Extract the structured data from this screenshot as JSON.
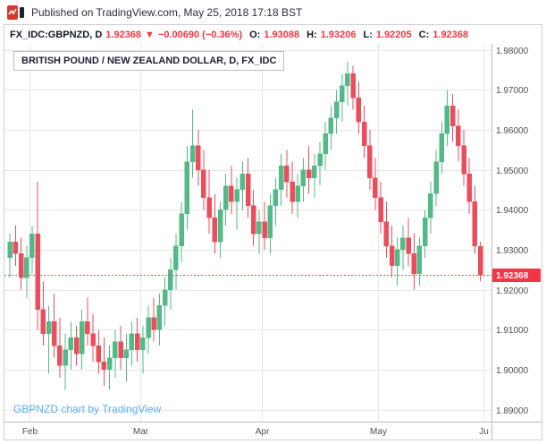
{
  "header": {
    "published_text": "Published on TradingView.com, May 25, 2018 17:18 BST"
  },
  "symbol_bar": {
    "symbol": "FX_IDC:GBPNZD, D",
    "last": "1.92368",
    "direction": "▼",
    "change": "−0.00690 (−0.36%)",
    "o_label": "O:",
    "o": "1.93088",
    "h_label": "H:",
    "h": "1.93206",
    "l_label": "L:",
    "l": "1.92205",
    "c_label": "C:",
    "c": "1.92368"
  },
  "chart_title": "BRITISH POUND / NEW ZEALAND DOLLAR, D, FX_IDC",
  "watermark": "GBPNZD chart by TradingView",
  "colors": {
    "up": "#53b987",
    "down": "#eb4d5c",
    "value_red": "#f23645",
    "tag_bg": "#f23645",
    "tag_text": "#ffffff",
    "grid": "#e7e7ea",
    "axis_border": "#b8bbc2",
    "axis_text": "#4f4f4f",
    "watermark": "#59b0e8"
  },
  "chart_data": {
    "type": "candlestick",
    "title": "BRITISH POUND / NEW ZEALAND DOLLAR, D, FX_IDC",
    "xlabel": "",
    "ylabel": "",
    "ylim": [
      1.887,
      1.9815
    ],
    "y_ticks": [
      "1.98000",
      "1.97000",
      "1.96000",
      "1.95000",
      "1.94000",
      "1.93000",
      "1.92000",
      "1.91000",
      "1.90000",
      "1.89000"
    ],
    "month_ticks": [
      {
        "label": "Feb",
        "index": 4
      },
      {
        "label": "Mar",
        "index": 24
      },
      {
        "label": "Apr",
        "index": 46
      },
      {
        "label": "May",
        "index": 67
      },
      {
        "label": "Ju",
        "index": 86
      }
    ],
    "last_price": 1.92368,
    "last_price_label": "1.92368",
    "ohlc": [
      [
        1.928,
        1.934,
        1.923,
        1.932
      ],
      [
        1.932,
        1.936,
        1.926,
        1.929
      ],
      [
        1.929,
        1.933,
        1.92,
        1.923
      ],
      [
        1.923,
        1.931,
        1.918,
        1.928
      ],
      [
        1.928,
        1.936,
        1.924,
        1.934
      ],
      [
        1.934,
        1.947,
        1.91,
        1.915
      ],
      [
        1.915,
        1.922,
        1.906,
        1.909
      ],
      [
        1.909,
        1.916,
        1.899,
        1.912
      ],
      [
        1.912,
        1.919,
        1.903,
        1.906
      ],
      [
        1.906,
        1.913,
        1.898,
        1.901
      ],
      [
        1.901,
        1.909,
        1.895,
        1.905
      ],
      [
        1.905,
        1.912,
        1.9,
        1.908
      ],
      [
        1.908,
        1.911,
        1.901,
        1.904
      ],
      [
        1.904,
        1.915,
        1.9,
        1.912
      ],
      [
        1.912,
        1.918,
        1.906,
        1.909
      ],
      [
        1.909,
        1.914,
        1.902,
        1.906
      ],
      [
        1.906,
        1.91,
        1.899,
        1.902
      ],
      [
        1.902,
        1.908,
        1.896,
        1.9
      ],
      [
        1.9,
        1.906,
        1.895,
        1.903
      ],
      [
        1.903,
        1.91,
        1.898,
        1.907
      ],
      [
        1.907,
        1.911,
        1.9,
        1.903
      ],
      [
        1.903,
        1.909,
        1.897,
        1.905
      ],
      [
        1.905,
        1.912,
        1.901,
        1.909
      ],
      [
        1.909,
        1.913,
        1.902,
        1.905
      ],
      [
        1.905,
        1.911,
        1.899,
        1.908
      ],
      [
        1.908,
        1.916,
        1.904,
        1.913
      ],
      [
        1.913,
        1.918,
        1.907,
        1.91
      ],
      [
        1.91,
        1.919,
        1.906,
        1.916
      ],
      [
        1.916,
        1.923,
        1.911,
        1.92
      ],
      [
        1.92,
        1.928,
        1.915,
        1.925
      ],
      [
        1.925,
        1.934,
        1.92,
        1.931
      ],
      [
        1.931,
        1.942,
        1.927,
        1.939
      ],
      [
        1.939,
        1.956,
        1.935,
        1.952
      ],
      [
        1.952,
        1.965,
        1.948,
        1.956
      ],
      [
        1.956,
        1.96,
        1.946,
        1.95
      ],
      [
        1.95,
        1.955,
        1.94,
        1.943
      ],
      [
        1.943,
        1.95,
        1.934,
        1.938
      ],
      [
        1.938,
        1.944,
        1.929,
        1.932
      ],
      [
        1.932,
        1.942,
        1.928,
        1.94
      ],
      [
        1.94,
        1.949,
        1.936,
        1.946
      ],
      [
        1.946,
        1.951,
        1.939,
        1.942
      ],
      [
        1.942,
        1.948,
        1.935,
        1.945
      ],
      [
        1.945,
        1.952,
        1.94,
        1.949
      ],
      [
        1.949,
        1.953,
        1.938,
        1.941
      ],
      [
        1.941,
        1.945,
        1.931,
        1.934
      ],
      [
        1.934,
        1.94,
        1.929,
        1.937
      ],
      [
        1.937,
        1.942,
        1.93,
        1.933
      ],
      [
        1.933,
        1.944,
        1.929,
        1.941
      ],
      [
        1.941,
        1.948,
        1.936,
        1.945
      ],
      [
        1.945,
        1.954,
        1.941,
        1.951
      ],
      [
        1.951,
        1.955,
        1.943,
        1.947
      ],
      [
        1.947,
        1.952,
        1.939,
        1.942
      ],
      [
        1.942,
        1.949,
        1.938,
        1.946
      ],
      [
        1.946,
        1.953,
        1.942,
        1.95
      ],
      [
        1.95,
        1.956,
        1.944,
        1.948
      ],
      [
        1.948,
        1.954,
        1.943,
        1.951
      ],
      [
        1.951,
        1.957,
        1.946,
        1.954
      ],
      [
        1.954,
        1.962,
        1.95,
        1.959
      ],
      [
        1.959,
        1.966,
        1.955,
        1.963
      ],
      [
        1.963,
        1.97,
        1.959,
        1.967
      ],
      [
        1.967,
        1.974,
        1.962,
        1.971
      ],
      [
        1.971,
        1.977,
        1.966,
        1.974
      ],
      [
        1.974,
        1.976,
        1.965,
        1.968
      ],
      [
        1.968,
        1.972,
        1.959,
        1.962
      ],
      [
        1.962,
        1.966,
        1.953,
        1.956
      ],
      [
        1.956,
        1.96,
        1.945,
        1.948
      ],
      [
        1.948,
        1.953,
        1.94,
        1.943
      ],
      [
        1.943,
        1.947,
        1.934,
        1.937
      ],
      [
        1.937,
        1.942,
        1.928,
        1.931
      ],
      [
        1.931,
        1.936,
        1.923,
        1.926
      ],
      [
        1.926,
        1.933,
        1.921,
        1.93
      ],
      [
        1.93,
        1.936,
        1.925,
        1.933
      ],
      [
        1.933,
        1.938,
        1.926,
        1.929
      ],
      [
        1.929,
        1.934,
        1.92,
        1.924
      ],
      [
        1.924,
        1.933,
        1.921,
        1.931
      ],
      [
        1.931,
        1.94,
        1.928,
        1.938
      ],
      [
        1.938,
        1.947,
        1.934,
        1.944
      ],
      [
        1.944,
        1.955,
        1.941,
        1.952
      ],
      [
        1.952,
        1.962,
        1.949,
        1.959
      ],
      [
        1.959,
        1.97,
        1.956,
        1.966
      ],
      [
        1.966,
        1.969,
        1.957,
        1.961
      ],
      [
        1.961,
        1.965,
        1.952,
        1.956
      ],
      [
        1.956,
        1.96,
        1.946,
        1.949
      ],
      [
        1.949,
        1.953,
        1.939,
        1.942
      ],
      [
        1.942,
        1.946,
        1.929,
        1.931
      ],
      [
        1.93088,
        1.93206,
        1.92205,
        1.92368
      ]
    ]
  }
}
